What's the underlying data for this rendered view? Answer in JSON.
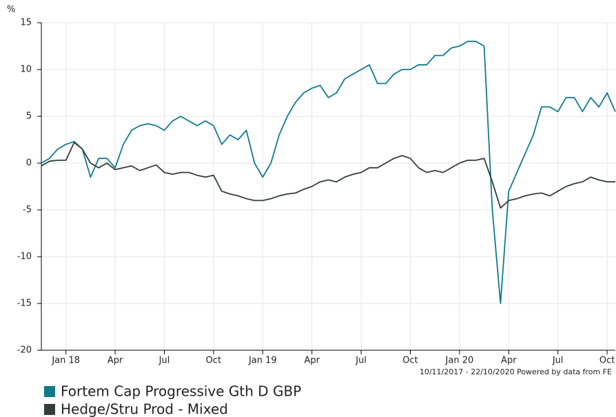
{
  "chart_data": {
    "type": "line",
    "y_unit": "%",
    "footnote": "10/11/2017 - 22/10/2020 Powered by data from FE",
    "categories": [
      null,
      null,
      null,
      "Jan 18",
      null,
      null,
      null,
      null,
      null,
      "Apr",
      null,
      null,
      null,
      null,
      null,
      "Jul",
      null,
      null,
      null,
      null,
      null,
      "Oct",
      null,
      null,
      null,
      null,
      null,
      "Jan 19",
      null,
      null,
      null,
      null,
      null,
      "Apr",
      null,
      null,
      null,
      null,
      null,
      "Jul",
      null,
      null,
      null,
      null,
      null,
      "Oct",
      null,
      null,
      null,
      null,
      null,
      "Jan 20",
      null,
      null,
      null,
      null,
      null,
      "Apr",
      null,
      null,
      null,
      null,
      null,
      "Jul",
      null,
      null,
      null,
      null,
      null,
      "Oct",
      null
    ],
    "series": [
      {
        "name": "Fortem Cap Progressive Gth D GBP",
        "color": "#0f7b8a",
        "values": [
          0,
          0.5,
          1.5,
          2,
          2.3,
          1.5,
          -1.5,
          0.5,
          0.5,
          -0.5,
          2,
          3.5,
          4,
          4.2,
          4,
          3.5,
          4.5,
          5,
          4.5,
          4,
          4.5,
          4,
          2,
          3,
          2.5,
          3.5,
          0,
          -1.5,
          0,
          3,
          5,
          6.5,
          7.5,
          8,
          8.3,
          7,
          7.5,
          9,
          9.5,
          10,
          10.5,
          8.5,
          8.5,
          9.5,
          10,
          10,
          10.5,
          10.5,
          11.5,
          11.5,
          12.3,
          12.5,
          13,
          13,
          12.5,
          -5,
          -15,
          -3,
          -1,
          1,
          3,
          6,
          6,
          5.5,
          7,
          7,
          5.5,
          7,
          6,
          7.5,
          5.5
        ]
      },
      {
        "name": "Hedge/Stru Prod - Mixed",
        "color": "#333d3a",
        "values": [
          -0.3,
          0.2,
          0.3,
          0.3,
          2.2,
          1.5,
          0,
          -0.5,
          0,
          -0.7,
          -0.5,
          -0.3,
          -0.8,
          -0.5,
          -0.2,
          -1,
          -1.2,
          -1,
          -1,
          -1.3,
          -1.5,
          -1.3,
          -3,
          -3.3,
          -3.5,
          -3.8,
          -4,
          -4,
          -3.8,
          -3.5,
          -3.3,
          -3.2,
          -2.8,
          -2.5,
          -2,
          -1.8,
          -2,
          -1.5,
          -1.2,
          -1,
          -0.5,
          -0.5,
          0,
          0.5,
          0.8,
          0.5,
          -0.5,
          -1,
          -0.8,
          -1,
          -0.5,
          0,
          0.3,
          0.3,
          0.5,
          -2,
          -4.8,
          -4,
          -3.8,
          -3.5,
          -3.3,
          -3.2,
          -3.5,
          -3,
          -2.5,
          -2.2,
          -2,
          -1.5,
          -1.8,
          -2,
          -2
        ]
      }
    ],
    "ylim": [
      -20,
      15
    ],
    "yticks": [
      -20,
      -15,
      -10,
      -5,
      0,
      5,
      10,
      15
    ],
    "grid": true,
    "legend": "bottom-left"
  }
}
